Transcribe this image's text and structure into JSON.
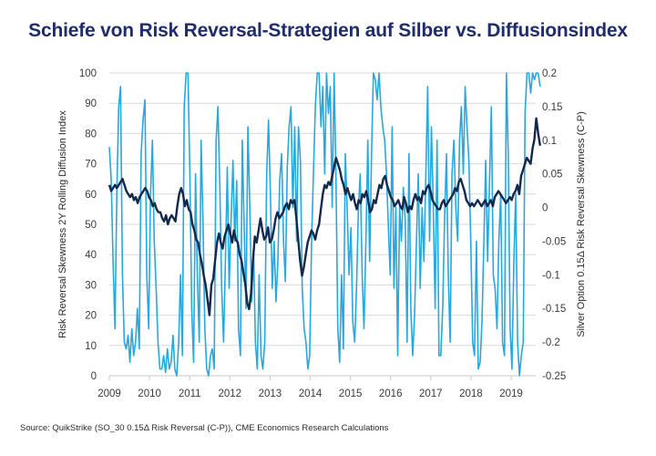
{
  "chart_data": {
    "type": "line",
    "title": "Schiefe von Risk Reversal-Strategien auf Silber vs. Diffusionsindex",
    "source": "Source: QuikStrike (SO_30 0.15Δ Risk Reversal (C-P)), CME Economics Research Calculations",
    "xlabel": "",
    "ylabel_left": "Risk Reversal Skewness 2Y Rolling Diffusion Index",
    "ylabel_right": "Silver Option 0.15Δ Risk Reversal Skewness (C-P)",
    "xlim": [
      2009.0,
      2019.72
    ],
    "ylim_left": [
      0,
      100
    ],
    "ylim_right": [
      -0.25,
      0.2
    ],
    "x_ticks": [
      "2009",
      "2010",
      "2011",
      "2012",
      "2013",
      "2014",
      "2015",
      "2016",
      "2017",
      "2018",
      "2019"
    ],
    "y_ticks_left": [
      "0",
      "10",
      "20",
      "30",
      "40",
      "50",
      "60",
      "70",
      "80",
      "90",
      "100"
    ],
    "y_ticks_right": [
      "-0.25",
      "-0.2",
      "-0.15",
      "-0.1",
      "-0.05",
      "0",
      "0.05",
      "0.1",
      "0.15",
      "0.2"
    ],
    "grid": true,
    "colors": {
      "diffusion": "#13294b",
      "skew": "#27a8df",
      "grid": "#d9d9d9",
      "title": "#1f2d6b"
    },
    "x_start": 2009.0,
    "x_step": 0.05,
    "series": [
      {
        "name": "Silver Option 0.15Δ Risk Reversal Skewness (C-P)",
        "axis": "right",
        "values": [
          0.09,
          0.04,
          -0.08,
          -0.18,
          0.02,
          0.15,
          0.18,
          -0.1,
          -0.2,
          -0.21,
          -0.19,
          -0.23,
          -0.18,
          -0.22,
          -0.2,
          -0.15,
          -0.21,
          0.08,
          0.13,
          0.16,
          -0.1,
          -0.18,
          0.02,
          0.1,
          -0.05,
          -0.12,
          -0.2,
          -0.24,
          -0.24,
          -0.22,
          -0.245,
          -0.21,
          -0.24,
          -0.23,
          -0.19,
          -0.24,
          -0.25,
          -0.2,
          -0.1,
          -0.22,
          0.15,
          0.2,
          0.2,
          0.05,
          -0.15,
          -0.23,
          0.05,
          -0.1,
          -0.2,
          0.1,
          -0.02,
          -0.18,
          -0.24,
          -0.25,
          -0.22,
          -0.21,
          -0.24,
          0.1,
          0.15,
          0.03,
          -0.12,
          -0.2,
          -0.08,
          0.06,
          -0.12,
          -0.02,
          0.07,
          -0.05,
          0.04,
          -0.18,
          -0.22,
          0.1,
          -0.03,
          -0.15,
          0.12,
          0.0,
          -0.14,
          -0.06,
          -0.2,
          -0.24,
          -0.1,
          -0.22,
          -0.24,
          -0.2,
          0.05,
          0.13,
          0.02,
          -0.12,
          -0.05,
          -0.14,
          -0.08,
          0.04,
          0.08,
          -0.05,
          -0.11,
          0.06,
          0.12,
          0.15,
          0.0,
          0.12,
          -0.05,
          0.12,
          0.07,
          -0.12,
          -0.18,
          -0.2,
          -0.24,
          -0.22,
          -0.05,
          0.05,
          0.15,
          0.2,
          0.2,
          0.12,
          0.18,
          0.05,
          0.2,
          0.14,
          0.18,
          0.0,
          0.2,
          0.05,
          -0.18,
          -0.23,
          -0.1,
          -0.21,
          0.08,
          0.0,
          -0.1,
          -0.03,
          -0.17,
          -0.2,
          -0.12,
          0.0,
          0.05,
          -0.1,
          -0.18,
          -0.05,
          0.1,
          -0.08,
          0.08,
          0.2,
          0.19,
          0.16,
          0.2,
          0.15,
          0.12,
          0.1,
          0.05,
          -0.03,
          -0.1,
          0.12,
          -0.12,
          0.0,
          -0.22,
          0.0,
          -0.05,
          0.03,
          -0.02,
          -0.2,
          0.08,
          -0.15,
          -0.22,
          -0.16,
          -0.05,
          0.05,
          -0.12,
          0.0,
          -0.08,
          0.05,
          0.18,
          -0.05,
          0.12,
          0.0,
          -0.15,
          0.1,
          -0.22,
          -0.22,
          -0.15,
          -0.02,
          0.08,
          -0.1,
          -0.2,
          0.05,
          0.1,
          0.0,
          -0.05,
          0.1,
          0.15,
          0.05,
          0.18,
          0.12,
          0.07,
          -0.05,
          -0.2,
          -0.22,
          -0.05,
          -0.24,
          -0.23,
          -0.17,
          -0.05,
          0.07,
          -0.08,
          0.04,
          0.15,
          -0.1,
          -0.12,
          -0.18,
          -0.05,
          0.02,
          -0.2,
          -0.22,
          0.2,
          0.08,
          -0.18,
          -0.24,
          -0.08,
          0.02,
          -0.2,
          -0.25,
          -0.22,
          -0.2,
          0.14,
          0.2,
          0.2,
          0.17,
          0.2,
          0.19,
          0.2,
          0.2,
          0.18
        ]
      },
      {
        "name": "Risk Reversal Skewness 2Y Rolling Diffusion Index",
        "axis": "left",
        "values": [
          63,
          61,
          62,
          63,
          62,
          63,
          64,
          65,
          63,
          61,
          60,
          59,
          60,
          58,
          59,
          57,
          59,
          60,
          61,
          62,
          61,
          59,
          58,
          56,
          57,
          55,
          54,
          54,
          52,
          51,
          53,
          50,
          52,
          53,
          52,
          51,
          56,
          60,
          62,
          60,
          56,
          58,
          55,
          54,
          50,
          48,
          45,
          44,
          40,
          37,
          33,
          30,
          25,
          20,
          30,
          32,
          38,
          44,
          47,
          44,
          42,
          46,
          48,
          50,
          47,
          44,
          48,
          45,
          44,
          40,
          38,
          34,
          30,
          24,
          22,
          27,
          38,
          46,
          44,
          48,
          52,
          48,
          45,
          46,
          49,
          44,
          45,
          48,
          52,
          54,
          52,
          53,
          54,
          56,
          57,
          55,
          58,
          57,
          58,
          52,
          45,
          38,
          33,
          36,
          40,
          44,
          46,
          48,
          47,
          45,
          48,
          50,
          55,
          60,
          63,
          62,
          64,
          63,
          66,
          69,
          72,
          70,
          68,
          65,
          63,
          60,
          62,
          60,
          58,
          60,
          57,
          55,
          58,
          57,
          60,
          59,
          61,
          58,
          54,
          55,
          58,
          57,
          60,
          63,
          62,
          65,
          66,
          63,
          61,
          59,
          58,
          56,
          57,
          58,
          56,
          55,
          59,
          57,
          54,
          56,
          55,
          58,
          60,
          58,
          59,
          57,
          61,
          60,
          62,
          63,
          61,
          58,
          57,
          56,
          55,
          55,
          57,
          58,
          56,
          57,
          58,
          59,
          60,
          62,
          61,
          64,
          65,
          63,
          61,
          58,
          57,
          56,
          57,
          56,
          57,
          58,
          57,
          56,
          57,
          58,
          56,
          57,
          58,
          56,
          59,
          60,
          61,
          60,
          59,
          58,
          57,
          58,
          59,
          58,
          60,
          61,
          63,
          60,
          66,
          68,
          70,
          72,
          71,
          70,
          75,
          78,
          85,
          80,
          76
        ]
      }
    ]
  }
}
